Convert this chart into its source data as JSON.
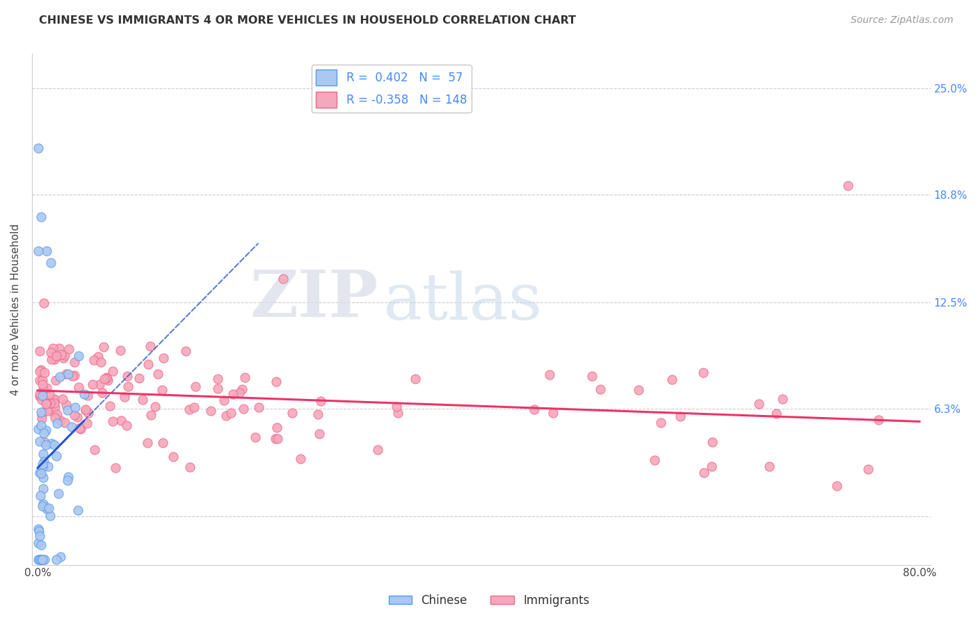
{
  "title": "CHINESE VS IMMIGRANTS 4 OR MORE VEHICLES IN HOUSEHOLD CORRELATION CHART",
  "source": "Source: ZipAtlas.com",
  "ylabel": "4 or more Vehicles in Household",
  "xlim": [
    -0.005,
    0.81
  ],
  "ylim": [
    -0.028,
    0.27
  ],
  "xtick_positions": [
    0.0,
    0.1,
    0.2,
    0.3,
    0.4,
    0.5,
    0.6,
    0.7,
    0.8
  ],
  "xticklabels": [
    "0.0%",
    "",
    "",
    "",
    "",
    "",
    "",
    "",
    "80.0%"
  ],
  "ytick_positions": [
    0.0,
    0.063,
    0.125,
    0.188,
    0.25
  ],
  "ytick_labels": [
    "",
    "6.3%",
    "12.5%",
    "18.8%",
    "25.0%"
  ],
  "chinese_R": 0.402,
  "chinese_N": 57,
  "immigrants_R": -0.358,
  "immigrants_N": 148,
  "chinese_fill_color": "#aac8f0",
  "chinese_edge_color": "#5599ee",
  "immigrants_fill_color": "#f5a8bc",
  "immigrants_edge_color": "#ee6688",
  "trend_color_chinese": "#2255cc",
  "trend_color_immigrants": "#ee3366",
  "watermark_zip": "ZIP",
  "watermark_atlas": "atlas",
  "legend_label_chinese": "Chinese",
  "legend_label_immigrants": "Immigrants",
  "background_color": "#ffffff",
  "grid_color": "#cccccc",
  "title_color": "#333333",
  "source_color": "#999999",
  "ytick_color": "#4488ff"
}
